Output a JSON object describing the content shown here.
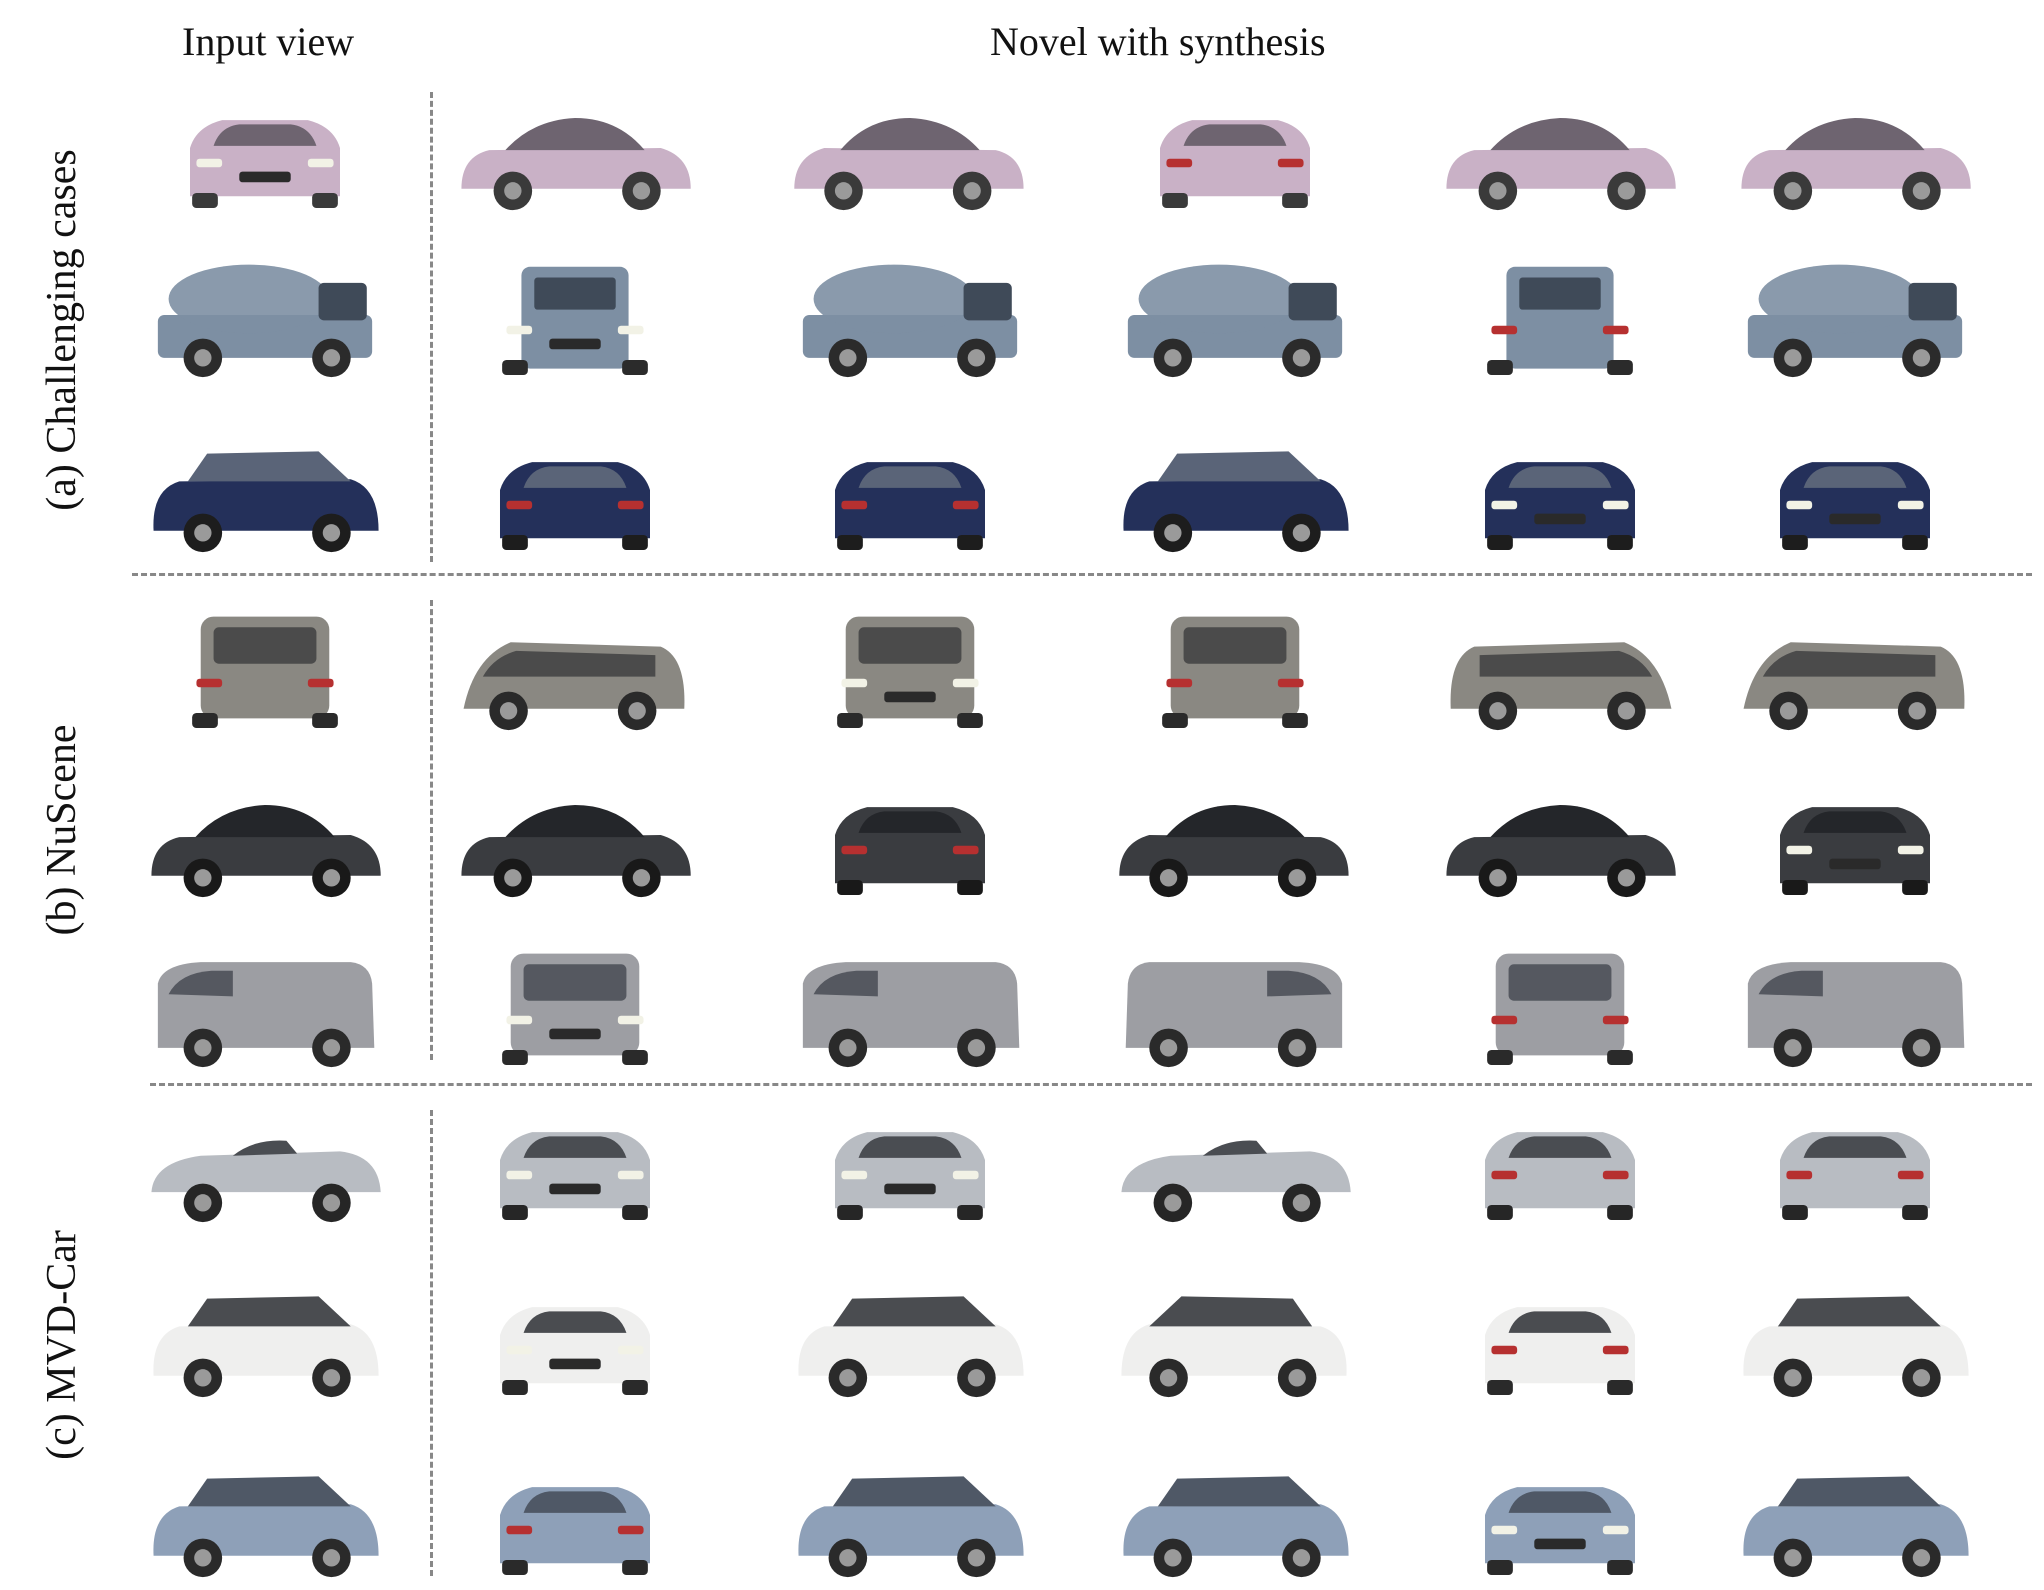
{
  "headers": {
    "input_view": "Input view",
    "novel": "Novel with synthesis"
  },
  "sections": [
    {
      "label": "(a) Challenging cases",
      "rows": [
        {
          "body": "#c9b1c6",
          "glass": "#6e6470",
          "wheel": "#3a3a3a",
          "kind": "sedan",
          "views": [
            "front",
            "side",
            "side-r",
            "rear",
            "side",
            "side"
          ]
        },
        {
          "body": "#7d8fa3",
          "glass": "#3f4a58",
          "wheel": "#2b2b2b",
          "kind": "truck",
          "views": [
            "side",
            "front",
            "side",
            "side",
            "rear",
            "side"
          ]
        },
        {
          "body": "#24305a",
          "glass": "#5a6478",
          "wheel": "#1d1d1d",
          "kind": "suv",
          "views": [
            "side",
            "rear",
            "rear",
            "side",
            "front",
            "front"
          ]
        }
      ]
    },
    {
      "label": "(b) NuScene",
      "rows": [
        {
          "body": "#8a8882",
          "glass": "#4b4b4b",
          "wheel": "#2a2a2a",
          "kind": "van",
          "views": [
            "rear",
            "side-r",
            "front",
            "rear",
            "side",
            "side-r"
          ]
        },
        {
          "body": "#3a3c40",
          "glass": "#24262a",
          "wheel": "#191919",
          "kind": "sedan",
          "views": [
            "side",
            "side",
            "rear",
            "side-r",
            "side",
            "front"
          ]
        },
        {
          "body": "#9d9ea3",
          "glass": "#555860",
          "wheel": "#2a2a2a",
          "kind": "box",
          "views": [
            "side",
            "front",
            "side",
            "side-r",
            "rear",
            "side"
          ]
        }
      ]
    },
    {
      "label": "(c) MVD-Car",
      "rows": [
        {
          "body": "#b8bcc2",
          "glass": "#4a4d52",
          "wheel": "#262626",
          "kind": "roadster",
          "views": [
            "side",
            "front",
            "front",
            "side",
            "rear",
            "rear"
          ]
        },
        {
          "body": "#efefee",
          "glass": "#4a4c50",
          "wheel": "#2a2a2a",
          "kind": "suv",
          "views": [
            "side",
            "front",
            "side",
            "side-r",
            "rear",
            "side"
          ]
        },
        {
          "body": "#8ea0b8",
          "glass": "#4f5866",
          "wheel": "#2a2a2a",
          "kind": "suv",
          "views": [
            "side",
            "rear",
            "side",
            "side",
            "front",
            "side"
          ]
        }
      ]
    }
  ]
}
